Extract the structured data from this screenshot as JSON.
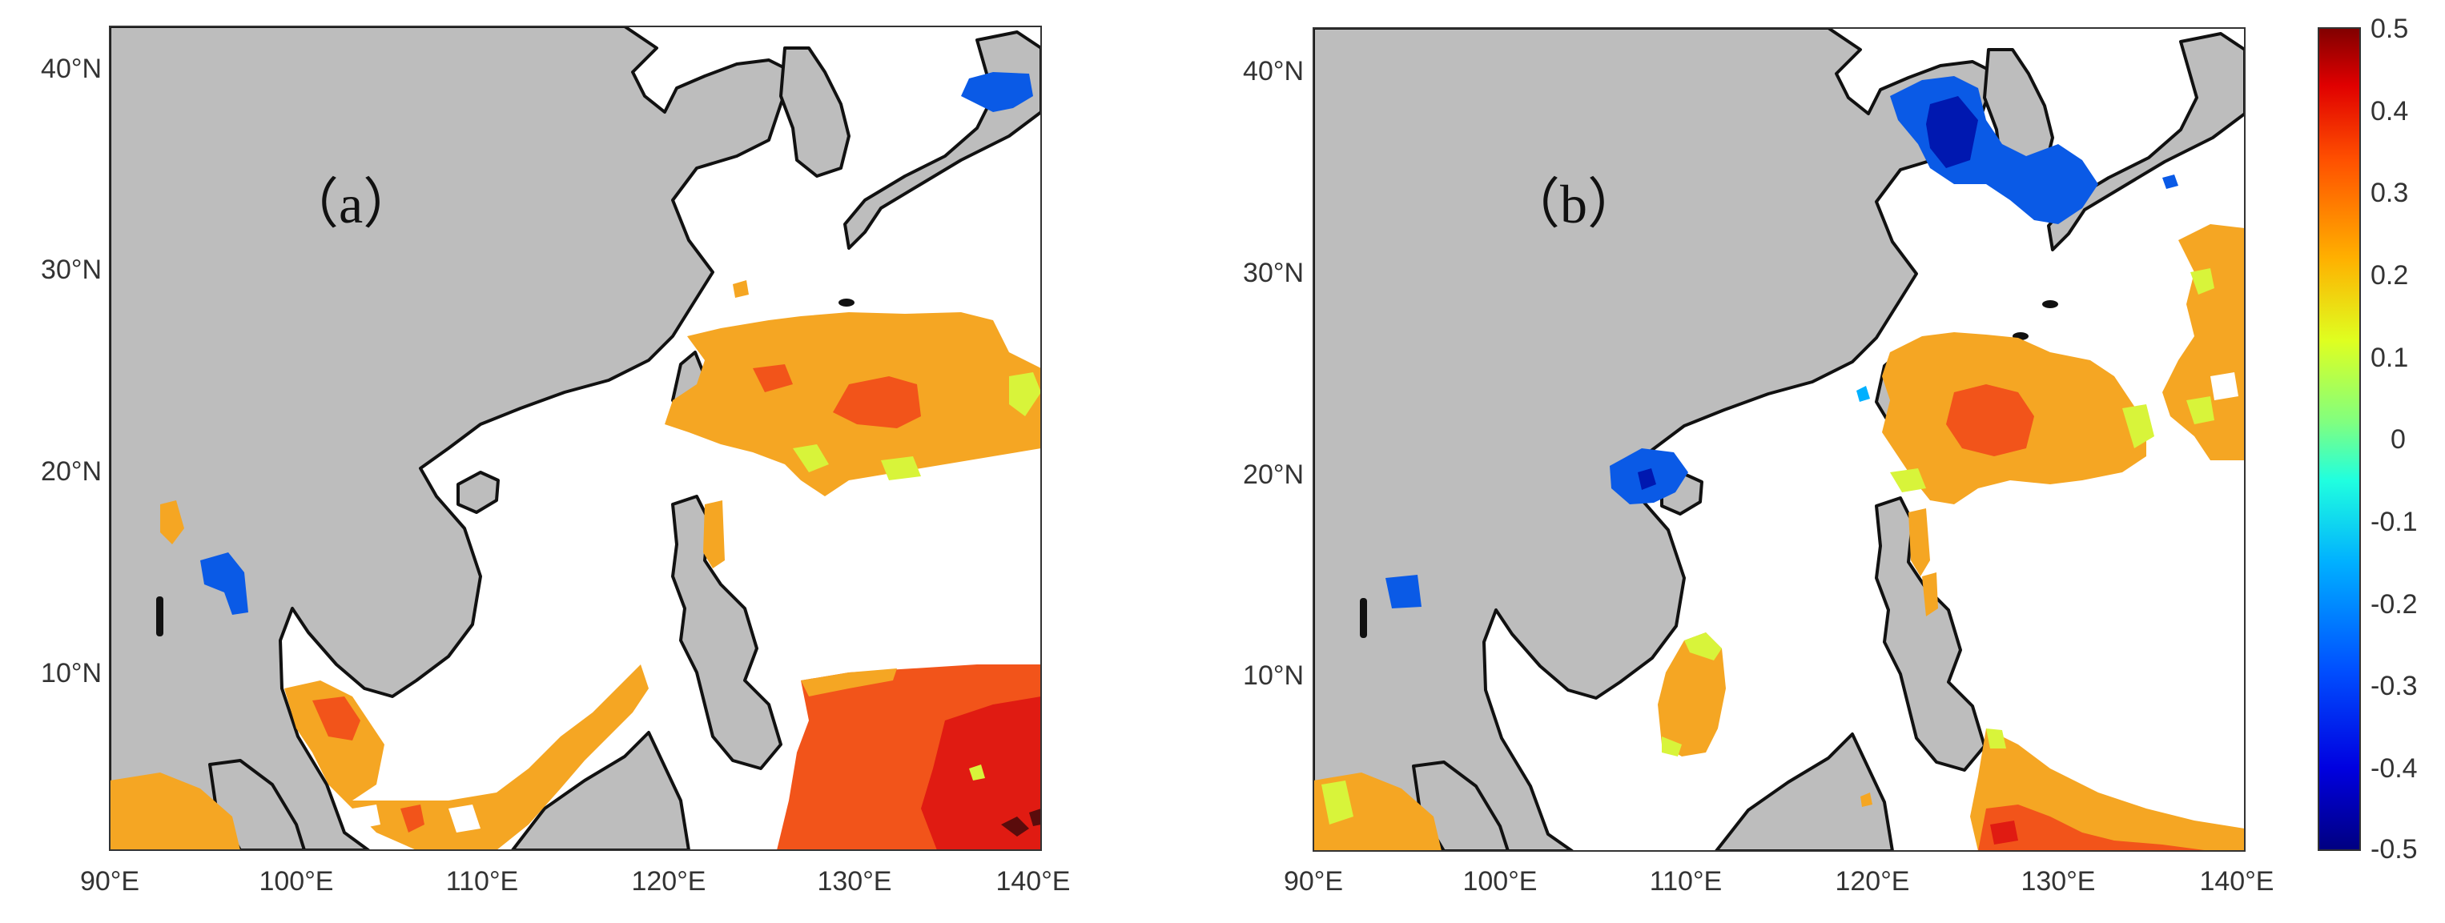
{
  "colors": {
    "land": "#bdbdbd",
    "coast": "#111111",
    "orange": "#f5a623",
    "red_orange": "#f2541a",
    "red": "#e01b12",
    "yellow_green": "#d8f43a",
    "blue": "#0a5ae6",
    "dark_blue": "#0018b0"
  },
  "panels": [
    {
      "label": "（a）",
      "x_ticks": [
        "90°E",
        "100°E",
        "110°E",
        "120°E",
        "130°E",
        "140°E"
      ],
      "y_ticks": [
        "40°N",
        "30°N",
        "20°N",
        "10°N"
      ]
    },
    {
      "label": "（b）",
      "x_ticks": [
        "90°E",
        "100°E",
        "110°E",
        "120°E",
        "130°E",
        "140°E"
      ],
      "y_ticks": [
        "40°N",
        "30°N",
        "20°N",
        "10°N"
      ]
    }
  ],
  "colorbar": {
    "ticks": [
      "0.5",
      "0.4",
      "0.3",
      "0.2",
      "0.1",
      "0",
      "-0.1",
      "-0.2",
      "-0.3",
      "-0.4",
      "-0.5"
    ],
    "stops": [
      "#000080",
      "#0000e0",
      "#0050ff",
      "#00b0ff",
      "#20ffdf",
      "#80ff80",
      "#dfff20",
      "#ffb000",
      "#ff5000",
      "#e00000",
      "#800000"
    ]
  }
}
